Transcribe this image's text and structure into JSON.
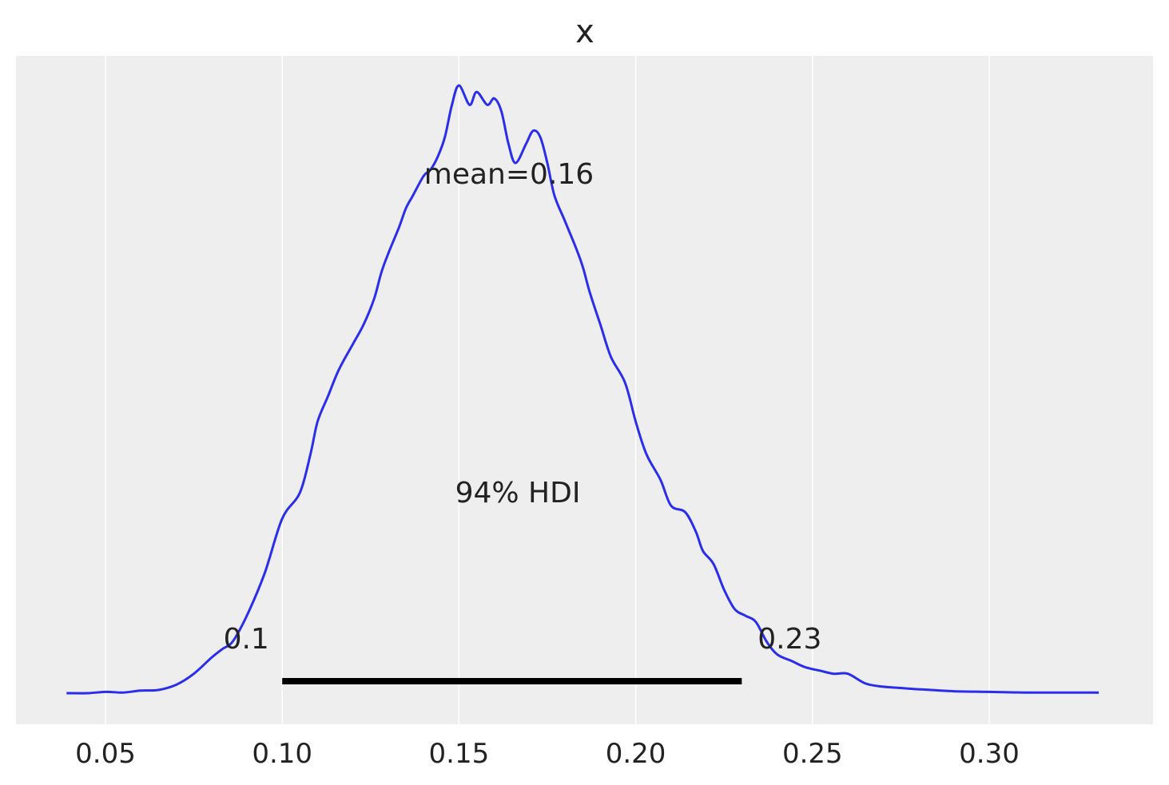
{
  "chart_data": {
    "type": "line",
    "title": "x",
    "xlabel": "",
    "ylabel": "",
    "xlim": [
      0.0395,
      0.3415
    ],
    "ylim": [
      0,
      1.05
    ],
    "grid": "vertical",
    "x_ticks": [
      "0.05",
      "0.10",
      "0.15",
      "0.20",
      "0.25",
      "0.30"
    ],
    "x_tick_values": [
      0.05,
      0.1,
      0.15,
      0.2,
      0.25,
      0.3
    ],
    "colors": {
      "density": "#2a2eec",
      "hdi_bar": "#000000",
      "panel_bg": "#eeeeee",
      "grid": "#ffffff"
    },
    "series": [
      {
        "x": [
          0.039,
          0.045,
          0.05,
          0.055,
          0.06,
          0.065,
          0.07,
          0.075,
          0.08,
          0.083,
          0.086,
          0.09,
          0.095,
          0.1,
          0.105,
          0.108,
          0.11,
          0.113,
          0.116,
          0.12,
          0.123,
          0.126,
          0.128,
          0.13,
          0.133,
          0.135,
          0.137,
          0.14,
          0.142,
          0.144,
          0.146,
          0.148,
          0.15,
          0.153,
          0.155,
          0.158,
          0.16,
          0.162,
          0.164,
          0.166,
          0.169,
          0.171,
          0.173,
          0.175,
          0.177,
          0.18,
          0.183,
          0.185,
          0.187,
          0.19,
          0.193,
          0.197,
          0.2,
          0.203,
          0.207,
          0.21,
          0.214,
          0.217,
          0.219,
          0.222,
          0.225,
          0.228,
          0.231,
          0.234,
          0.237,
          0.24,
          0.244,
          0.248,
          0.252,
          0.256,
          0.26,
          0.265,
          0.27,
          0.275,
          0.28,
          0.29,
          0.3,
          0.31,
          0.32,
          0.331
        ],
        "y": [
          0.0,
          0.0,
          0.002,
          0.001,
          0.004,
          0.005,
          0.013,
          0.03,
          0.055,
          0.068,
          0.08,
          0.12,
          0.185,
          0.27,
          0.31,
          0.37,
          0.42,
          0.46,
          0.5,
          0.54,
          0.57,
          0.61,
          0.65,
          0.68,
          0.72,
          0.75,
          0.77,
          0.8,
          0.81,
          0.83,
          0.86,
          0.91,
          0.94,
          0.91,
          0.93,
          0.91,
          0.92,
          0.9,
          0.85,
          0.82,
          0.85,
          0.87,
          0.86,
          0.82,
          0.77,
          0.73,
          0.69,
          0.66,
          0.62,
          0.57,
          0.52,
          0.48,
          0.42,
          0.37,
          0.33,
          0.29,
          0.28,
          0.25,
          0.22,
          0.2,
          0.16,
          0.13,
          0.12,
          0.11,
          0.08,
          0.06,
          0.05,
          0.04,
          0.035,
          0.03,
          0.03,
          0.015,
          0.01,
          0.008,
          0.006,
          0.003,
          0.002,
          0.001,
          0.001,
          0.001
        ]
      }
    ],
    "annotations": {
      "mean_label": "mean=0.16",
      "hdi_label": "94% HDI",
      "hdi_low": 0.1,
      "hdi_high": 0.23,
      "hdi_low_label": "0.1",
      "hdi_high_label": "0.23"
    }
  }
}
